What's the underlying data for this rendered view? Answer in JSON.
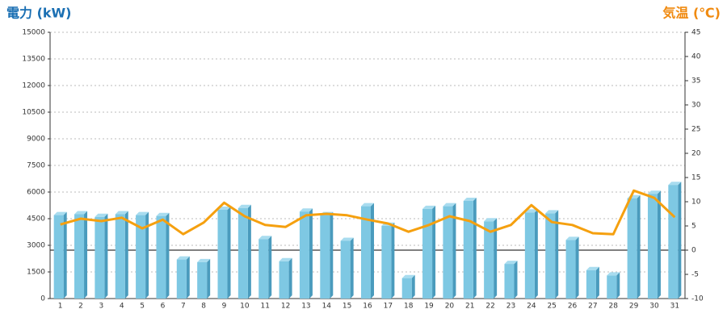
{
  "chart_data": {
    "type": "bar",
    "y_title": "電力 (kW)",
    "y2_title": "気温 (℃)",
    "categories": [
      "1",
      "2",
      "3",
      "4",
      "5",
      "6",
      "7",
      "8",
      "9",
      "10",
      "11",
      "12",
      "13",
      "14",
      "15",
      "16",
      "17",
      "18",
      "19",
      "20",
      "21",
      "22",
      "23",
      "24",
      "25",
      "26",
      "27",
      "28",
      "29",
      "30",
      "31"
    ],
    "series": [
      {
        "type": "bar",
        "color": "#7ec8e3",
        "values": [
          4700,
          4750,
          4600,
          4750,
          4700,
          4650,
          2200,
          2050,
          5000,
          5100,
          3350,
          2100,
          4900,
          4700,
          3250,
          5200,
          4100,
          1150,
          5050,
          5200,
          5500,
          4350,
          1950,
          4850,
          4800,
          3300,
          1600,
          1300,
          5650,
          5900,
          6400
        ]
      },
      {
        "type": "line",
        "axis": "y2",
        "color": "#f5a00f",
        "values": [
          5.3,
          6.5,
          6.0,
          6.7,
          4.5,
          6.3,
          3.3,
          5.7,
          9.8,
          7.0,
          5.2,
          4.8,
          7.2,
          7.5,
          7.2,
          6.3,
          5.5,
          3.8,
          5.2,
          7.0,
          6.0,
          3.8,
          5.2,
          9.3,
          5.8,
          5.2,
          3.5,
          3.3,
          12.3,
          10.8,
          6.8
        ]
      }
    ],
    "ylim": [
      0,
      15000
    ],
    "yticks": [
      0,
      1500,
      3000,
      4500,
      6000,
      7500,
      9000,
      10500,
      12000,
      13500,
      15000
    ],
    "y2lim": [
      -10,
      45
    ],
    "y2ticks": [
      -10,
      -5,
      0,
      5,
      10,
      15,
      20,
      25,
      30,
      35,
      40,
      45
    ],
    "grid": true
  }
}
